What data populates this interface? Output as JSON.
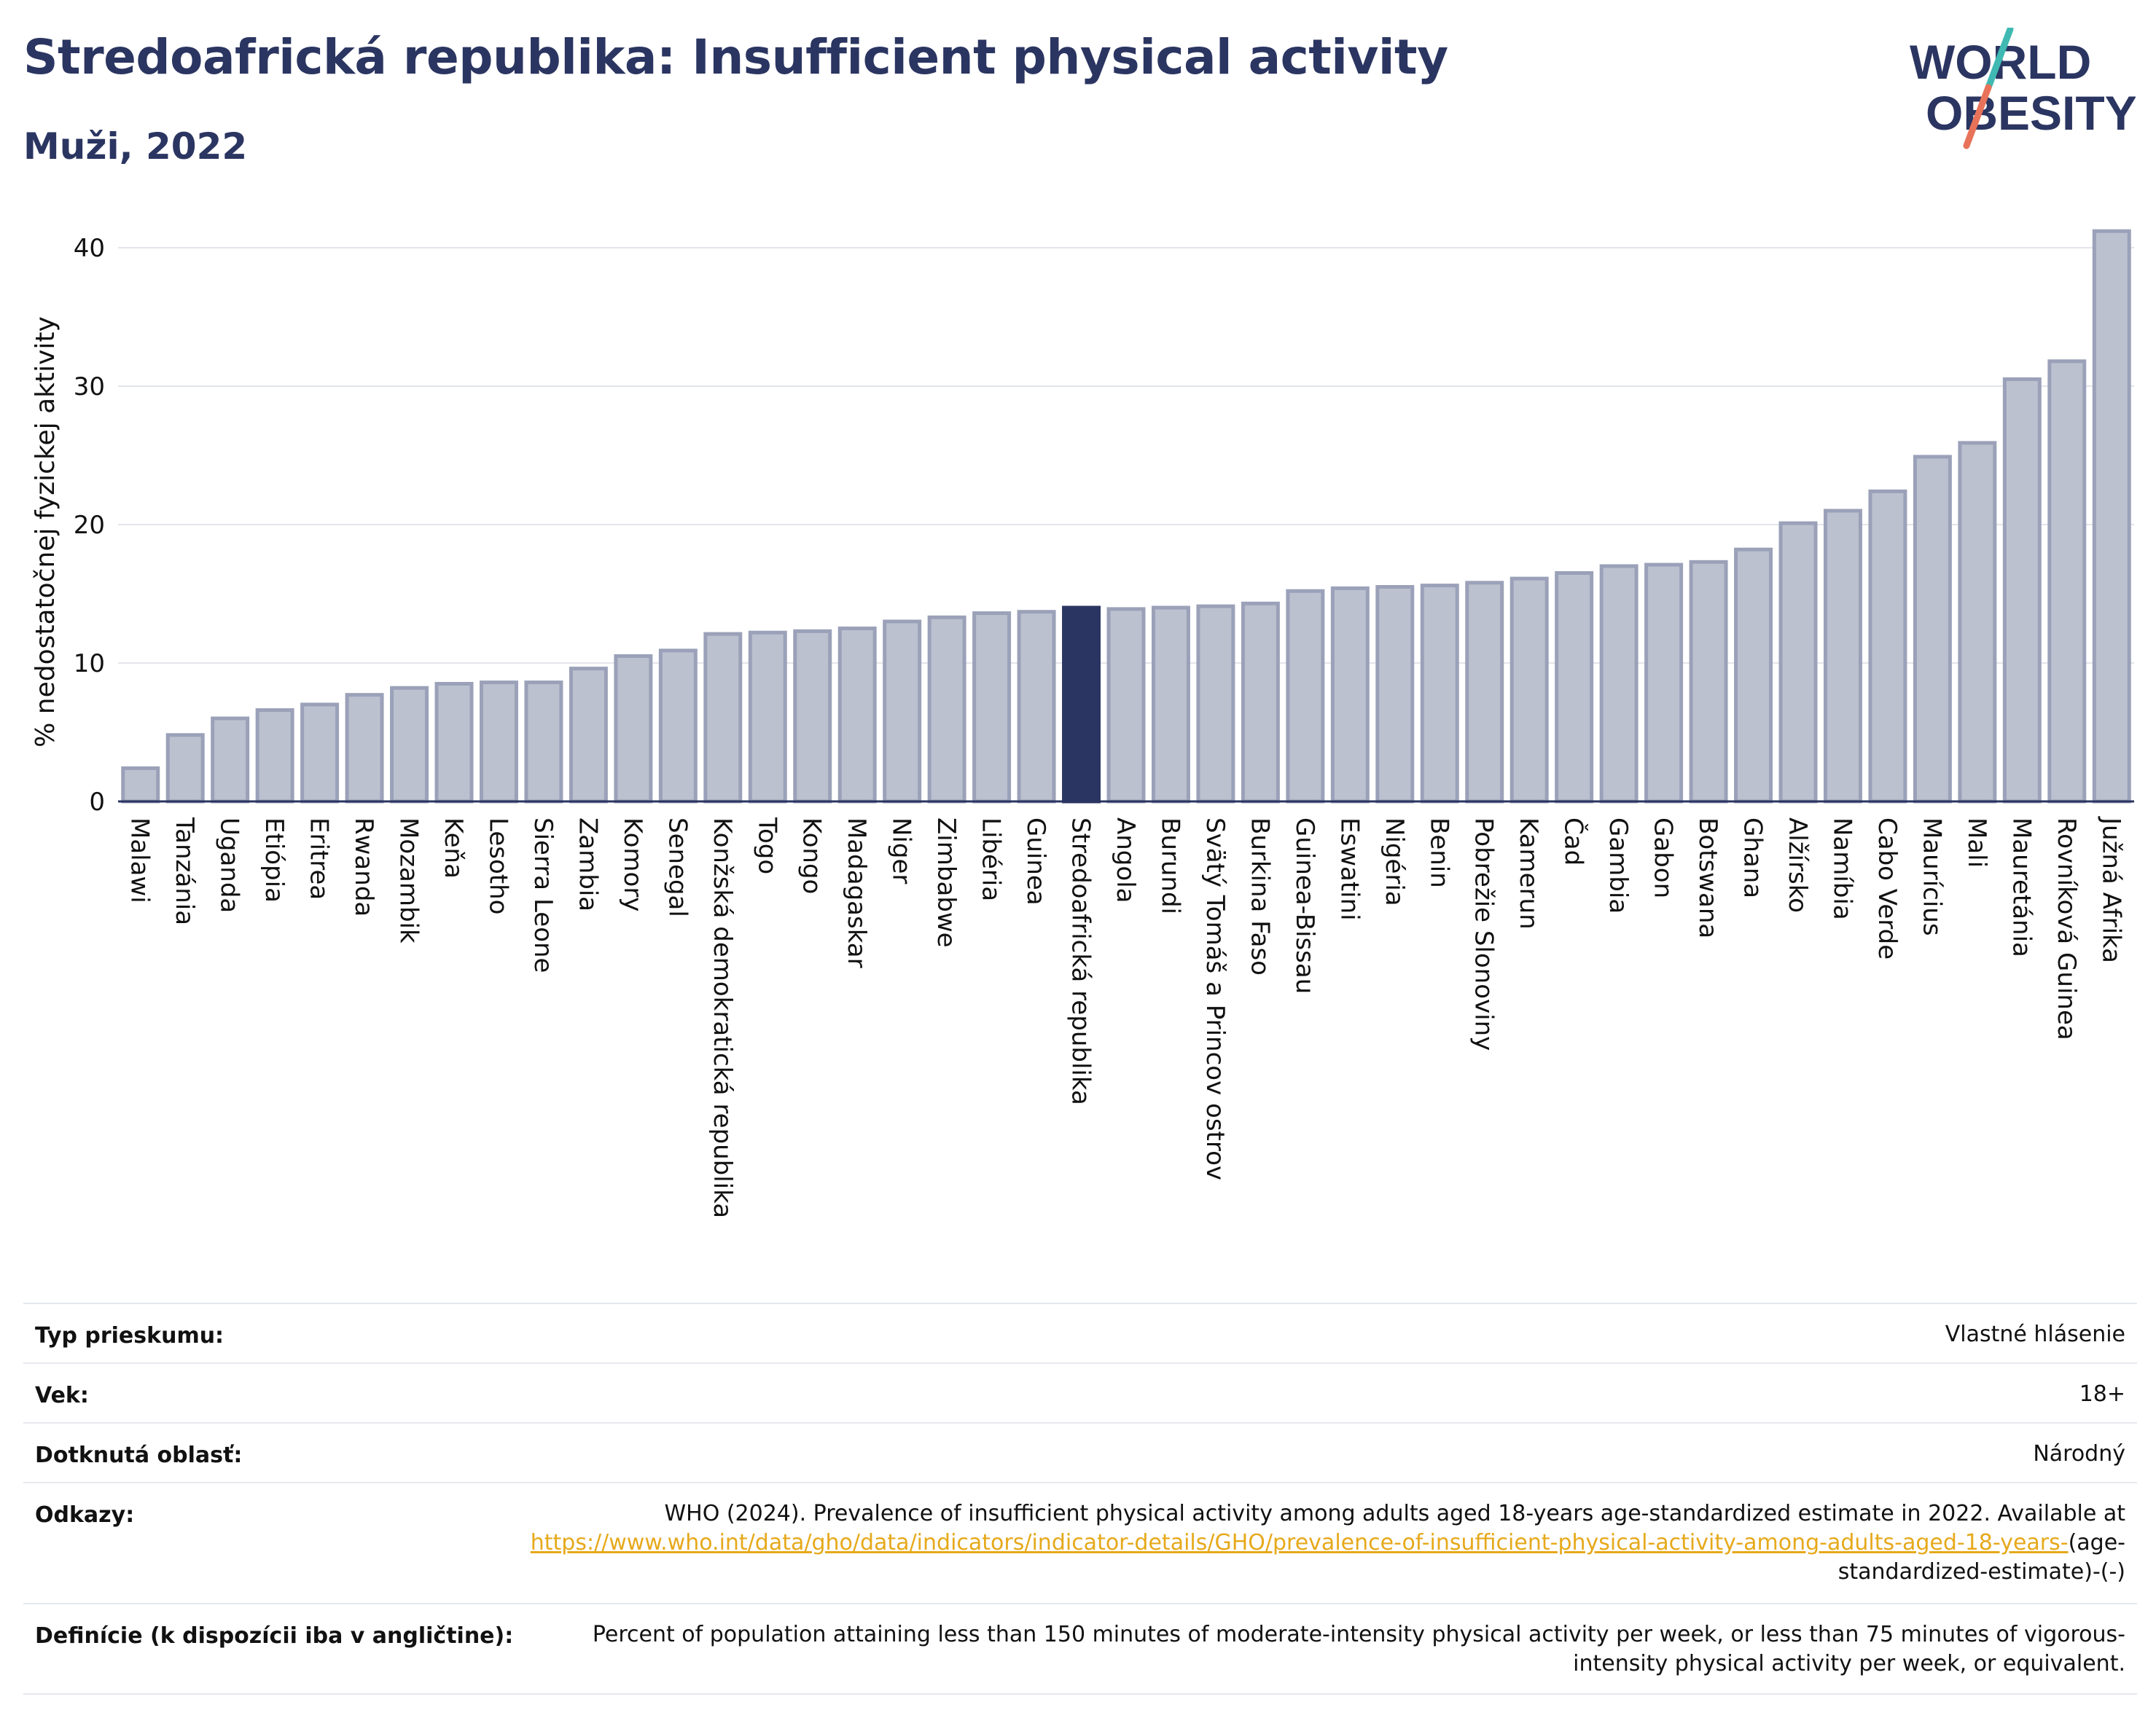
{
  "header": {
    "title": "Stredoafrická republika: Insufficient physical activity",
    "subtitle": "Muži, 2022"
  },
  "logo": {
    "line1": "WORLD",
    "line2": "OBESITY",
    "colors": {
      "text": "#2b3561",
      "slash_teal": "#3fb9b2",
      "slash_coral": "#e8735a"
    }
  },
  "colors": {
    "bar": "#bcc1d0",
    "bar_stroke": "#9aa1b8",
    "highlight": "#2b3561",
    "grid": "#e3e5ec",
    "axis": "#2b3561"
  },
  "chart_data": {
    "type": "bar",
    "ylabel": "% nedostatočnej fyzickej aktivity",
    "ylim": [
      0,
      42
    ],
    "yticks": [
      0,
      10,
      20,
      30,
      40
    ],
    "grid": true,
    "highlight": "Stredoafrická republika",
    "categories": [
      "Malawi",
      "Tanzánia",
      "Uganda",
      "Etiópia",
      "Eritrea",
      "Rwanda",
      "Mozambik",
      "Keňa",
      "Lesotho",
      "Sierra Leone",
      "Zambia",
      "Komory",
      "Senegal",
      "Konžská demokratická republika",
      "Togo",
      "Kongo",
      "Madagaskar",
      "Niger",
      "Zimbabwe",
      "Libéria",
      "Guinea",
      "Stredoafrická republika",
      "Angola",
      "Burundi",
      "Svätý Tomáš a Princov ostrov",
      "Burkina Faso",
      "Guinea-Bissau",
      "Eswatini",
      "Nigéria",
      "Benin",
      "Pobrežie Slonoviny",
      "Kamerun",
      "Čad",
      "Gambia",
      "Gabon",
      "Botswana",
      "Ghana",
      "Alžírsko",
      "Namíbia",
      "Cabo Verde",
      "Maurícius",
      "Mali",
      "Mauretánia",
      "Rovníková Guinea",
      "Južná Afrika"
    ],
    "values": [
      2.4,
      4.8,
      6.0,
      6.6,
      7.0,
      7.7,
      8.2,
      8.5,
      8.6,
      8.6,
      9.6,
      10.5,
      10.9,
      12.1,
      12.2,
      12.3,
      12.5,
      13.0,
      13.3,
      13.6,
      13.7,
      14.0,
      13.9,
      14.0,
      14.1,
      14.3,
      15.2,
      15.4,
      15.5,
      15.6,
      15.8,
      16.1,
      16.5,
      17.0,
      17.1,
      17.3,
      18.2,
      20.1,
      21.0,
      22.4,
      24.9,
      25.9,
      30.5,
      31.8,
      41.2
    ]
  },
  "info": {
    "survey_type_label": "Typ prieskumu:",
    "survey_type_value": "Vlastné hlásenie",
    "age_label": "Vek:",
    "age_value": "18+",
    "area_label": "Dotknutá oblasť:",
    "area_value": "Národný",
    "refs_label": "Odkazy:",
    "refs_text": "WHO (2024). Prevalence of insufficient physical activity among adults aged 18-years age-standardized estimate in 2022. Available at ",
    "refs_link": "https://www.who.int/data/gho/data/indicators/indicator-details/GHO/prevalence-of-insufficient-physical-activity-among-adults-aged-18-years-",
    "refs_tail": "(age-standardized-estimate)-(-)",
    "def_label": "Definície (k dispozícii iba v angličtine):",
    "def_value": "Percent of population attaining less than 150 minutes of moderate-intensity physical activity per week, or less than 75 minutes of vigorous-intensity physical activity per week, or equivalent."
  }
}
